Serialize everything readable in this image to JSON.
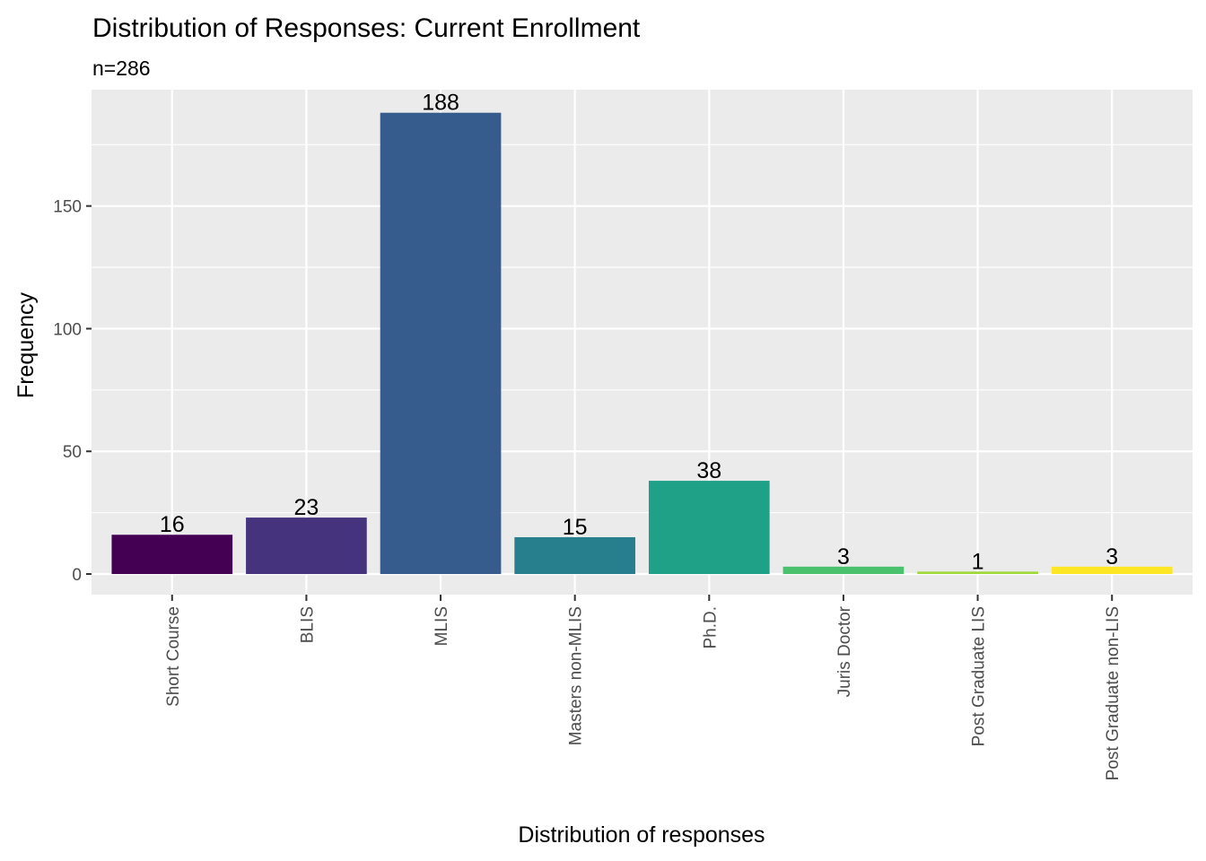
{
  "chart_data": {
    "type": "bar",
    "title": "Distribution of Responses: Current Enrollment",
    "subtitle": "n=286",
    "xlabel": "Distribution of responses",
    "ylabel": "Frequency",
    "categories": [
      "Short Course",
      "BLIS",
      "MLIS",
      "Masters non-MLIS",
      "Ph.D.",
      "Juris Doctor",
      "Post Graduate LIS",
      "Post Graduate non-LIS"
    ],
    "values": [
      16,
      23,
      188,
      15,
      38,
      3,
      1,
      3
    ],
    "data_labels": [
      "16",
      "23",
      "188",
      "15",
      "38",
      "3",
      "1",
      "3"
    ],
    "colors": [
      "#440154",
      "#46337e",
      "#365c8d",
      "#277f8e",
      "#1fa187",
      "#4ac16d",
      "#9fda3a",
      "#fde725"
    ],
    "ylim": [
      -8.4,
      197.4
    ],
    "yticks": [
      0,
      50,
      100,
      150
    ],
    "ytick_labels": [
      "0",
      "50",
      "100",
      "150"
    ],
    "grid": true,
    "legend": "none",
    "panel_background": "#ebebeb",
    "grid_color": "#ffffff"
  }
}
